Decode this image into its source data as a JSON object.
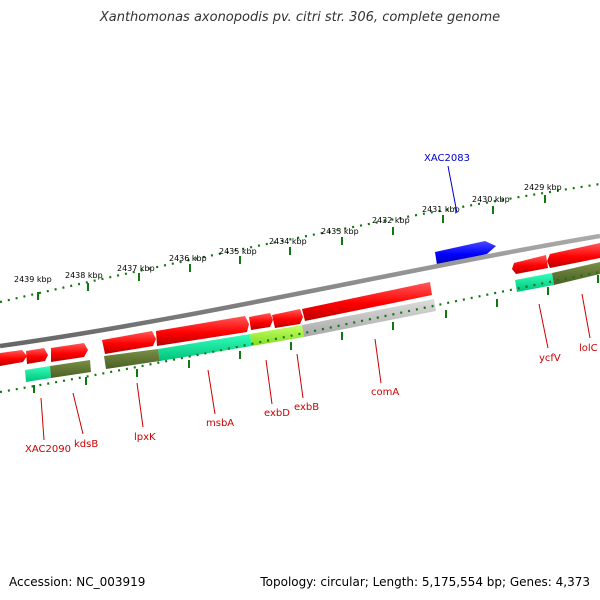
{
  "title": "Xanthomonas axonopodis pv. citri str. 306, complete genome",
  "footer": {
    "accession": "Accession: NC_003919",
    "summary": "Topology: circular; Length: 5,175,554 bp; Genes: 4,373"
  },
  "scale": {
    "unit": "kbp",
    "tick_labels": [
      "2439 kbp",
      "2438 kbp",
      "2437 kbp",
      "2436 kbp",
      "2435 kbp",
      "2434 kbp",
      "2433 kbp",
      "2432 kbp",
      "2431 kbp",
      "2430 kbp",
      "2429 kbp"
    ]
  },
  "genes": {
    "labels": [
      "XAC2083",
      "XAC2090",
      "kdsB",
      "lpxK",
      "msbA",
      "exbD",
      "exbB",
      "comA",
      "ycfV",
      "lolC"
    ]
  },
  "colors": {
    "forward_strand": "#ff0000",
    "reverse_strand_gene": "#0000ff",
    "cog_green": "#556b2f",
    "cog_teal": "#00e090",
    "cog_lime": "#99ff33",
    "cog_gray": "#bbbbbb",
    "backbone": "#888888",
    "scale_ticks": "#117711",
    "label_red": "#cc0000",
    "label_blue": "#0000cc"
  }
}
